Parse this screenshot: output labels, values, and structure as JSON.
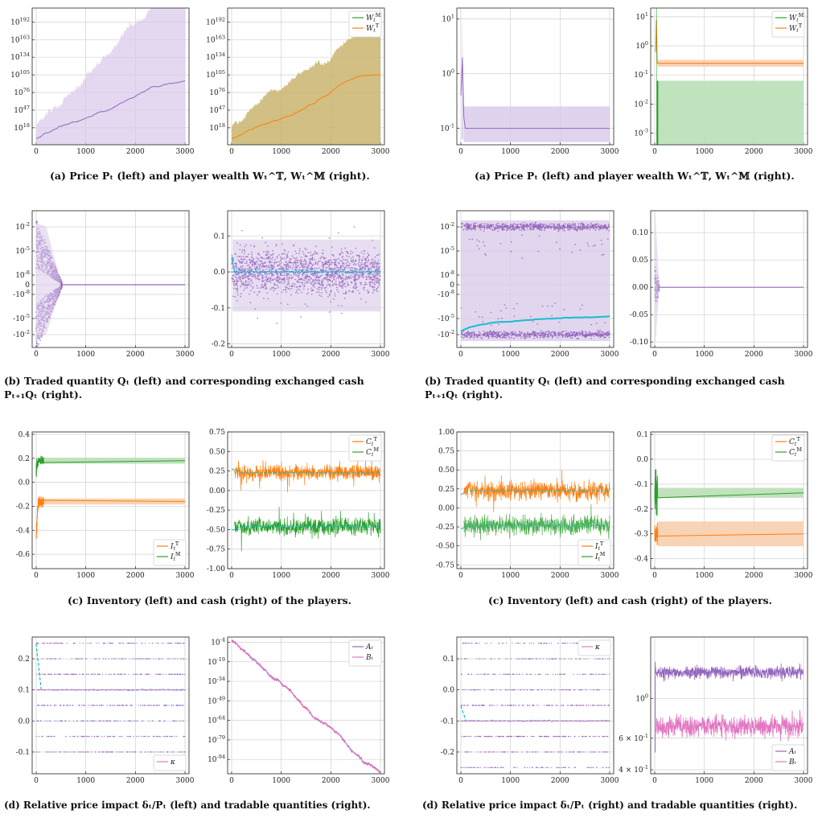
{
  "colors": {
    "purple": "#9467bd",
    "purple_band": "#d8c8ea",
    "orange": "#ff7f0e",
    "orange_band": "#f7cfae",
    "green": "#2ca02c",
    "green_band": "#b9dfb6",
    "olive_band": "#c9b46f",
    "cyan": "#17becf",
    "pink": "#e377c2"
  },
  "captions": [
    "(a) Price Pₜ (left) and player wealth Wₜ^𝕋, Wₜ^𝕄 (right).",
    "(a) Price Pₜ (left) and player wealth Wₜ^𝕋, Wₜ^𝕄 (right).",
    "(b) Traded quantity Qₜ (left) and corresponding exchanged cash Pₜ₊₁Qₜ (right).",
    "(b) Traded quantity Qₜ (left) and corresponding exchanged cash Pₜ₊₁Qₜ (right).",
    "(c) Inventory (left) and cash (right) of the players.",
    "(c) Inventory (left) and cash (right) of the players.",
    "(d) Relative price impact δₜ/Pₜ (left) and tradable quantities (right).",
    "(d) Relative price impact δₜ/Pₜ (right) and tradable quantities (right)."
  ],
  "chart_data": [
    {
      "id": "a-left",
      "type": "line",
      "xlim": [
        0,
        3000
      ],
      "x_ticks": [
        "0",
        "1000",
        "2000",
        "3000"
      ],
      "y_scale": "log",
      "y_ticks": [
        "10^18",
        "10^47",
        "10^76",
        "10^105",
        "10^134",
        "10^163",
        "10^192"
      ],
      "series": [
        {
          "color": "purple",
          "start_exp": 0,
          "end_exp": 105,
          "band": "purple_band",
          "band_end_exp": 225
        }
      ]
    },
    {
      "id": "a-right",
      "type": "line",
      "xlim": [
        0,
        3000
      ],
      "x_ticks": [
        "0",
        "1000",
        "2000",
        "3000"
      ],
      "y_scale": "log",
      "y_ticks": [
        "10^18",
        "10^47",
        "10^76",
        "10^105",
        "10^134",
        "10^163",
        "10^192"
      ],
      "legend": [
        "Wₜ^𝕄",
        "Wₜ^𝕋"
      ],
      "series": [
        {
          "color": "orange",
          "start_exp": 0,
          "end_exp": 105,
          "band": "olive_band",
          "band_end_exp": 200
        }
      ]
    },
    {
      "id": "a2-left",
      "type": "line",
      "xlim": [
        0,
        3000
      ],
      "x_ticks": [
        "0",
        "1000",
        "2000",
        "3000"
      ],
      "y_scale": "log",
      "y_ticks": [
        "10^-1",
        "10^0",
        "10^1"
      ],
      "ylim_exp": [
        -1.3,
        1.2
      ],
      "series": [
        {
          "color": "purple",
          "spike_exp": 0.3,
          "level_exp": -1,
          "band": [
            -1.25,
            -0.6
          ]
        }
      ]
    },
    {
      "id": "a2-right",
      "type": "line",
      "xlim": [
        0,
        3000
      ],
      "x_ticks": [
        "0",
        "1000",
        "2000",
        "3000"
      ],
      "y_scale": "log",
      "y_ticks": [
        "10^-3",
        "10^-2",
        "10^-1",
        "10^0",
        "10^1"
      ],
      "ylim_exp": [
        -3.4,
        1.3
      ],
      "legend": [
        "Wₜ^𝕄",
        "Wₜ^𝕋"
      ],
      "series": [
        {
          "color": "orange",
          "level_exp": -0.6
        },
        {
          "color": "green",
          "band_top_exp": -1.2
        }
      ]
    },
    {
      "id": "b-left",
      "type": "scatter",
      "xlim": [
        0,
        3000
      ],
      "x_ticks": [
        "0",
        "1000",
        "2000",
        "3000"
      ],
      "y_scale": "symlog",
      "y_ticks": [
        "10^-2",
        "10^-5",
        "10^-8",
        "0",
        "-10^-8",
        "-10^-5",
        "-10^-2"
      ]
    },
    {
      "id": "b-right",
      "type": "scatter",
      "xlim": [
        0,
        3000
      ],
      "x_ticks": [
        "0",
        "1000",
        "2000",
        "3000"
      ],
      "ylim": [
        -0.21,
        0.17
      ],
      "y_ticks": [
        "0.1",
        "0.0",
        "-0.1",
        "-0.2"
      ]
    },
    {
      "id": "b2-left",
      "type": "scatter",
      "xlim": [
        0,
        3000
      ],
      "x_ticks": [
        "0",
        "1000",
        "2000",
        "3000"
      ],
      "y_scale": "symlog",
      "y_ticks": [
        "10^-2",
        "10^-5",
        "10^-8",
        "0",
        "-10^-8",
        "-10^-5",
        "-10^-2"
      ]
    },
    {
      "id": "b2-right",
      "type": "scatter",
      "xlim": [
        0,
        3000
      ],
      "x_ticks": [
        "0",
        "1000",
        "2000",
        "3000"
      ],
      "ylim": [
        -0.11,
        0.14
      ],
      "y_ticks": [
        "0.10",
        "0.05",
        "0.00",
        "-0.05",
        "-0.10"
      ]
    },
    {
      "id": "c-left",
      "type": "line",
      "xlim": [
        0,
        3000
      ],
      "x_ticks": [
        "0",
        "1000",
        "2000",
        "3000"
      ],
      "ylim": [
        -0.72,
        0.42
      ],
      "y_ticks": [
        "0.4",
        "0.2",
        "0.0",
        "-0.2",
        "-0.4",
        "-0.6"
      ],
      "legend": [
        "Iₜ^𝕋",
        "Iₜ^𝕄"
      ],
      "series": [
        {
          "color": "green",
          "level": 0.18
        },
        {
          "color": "orange",
          "level": -0.16
        }
      ]
    },
    {
      "id": "c-right",
      "type": "line",
      "xlim": [
        0,
        3000
      ],
      "x_ticks": [
        "0",
        "1000",
        "2000",
        "3000"
      ],
      "ylim": [
        -1.0,
        0.75
      ],
      "y_ticks": [
        "0.75",
        "0.50",
        "0.25",
        "0.00",
        "-0.25",
        "-0.50",
        "-0.75",
        "-1.00"
      ],
      "legend": [
        "Cₜ^𝕋",
        "Cₜ^𝕄"
      ],
      "series": [
        {
          "color": "orange",
          "level": 0.23
        },
        {
          "color": "green",
          "level": -0.46
        }
      ]
    },
    {
      "id": "c2-left",
      "type": "line",
      "xlim": [
        0,
        3000
      ],
      "x_ticks": [
        "0",
        "1000",
        "2000",
        "3000"
      ],
      "ylim": [
        -0.8,
        1.0
      ],
      "y_ticks": [
        "1.00",
        "0.75",
        "0.50",
        "0.25",
        "0.00",
        "-0.25",
        "-0.50",
        "-0.75"
      ],
      "legend": [
        "Iₜ^𝕋",
        "Iₜ^𝕄"
      ],
      "series": [
        {
          "color": "orange",
          "level": 0.23
        },
        {
          "color": "green",
          "level": -0.23
        }
      ]
    },
    {
      "id": "c2-right",
      "type": "line",
      "xlim": [
        0,
        3000
      ],
      "x_ticks": [
        "0",
        "1000",
        "2000",
        "3000"
      ],
      "ylim": [
        -0.44,
        0.11
      ],
      "y_ticks": [
        "0.1",
        "0.0",
        "-0.1",
        "-0.2",
        "-0.3",
        "-0.4"
      ],
      "legend": [
        "Cₜ^𝕋",
        "Cₜ^𝕄"
      ],
      "series": [
        {
          "color": "green",
          "level": -0.135
        },
        {
          "color": "orange",
          "level": -0.3
        }
      ]
    },
    {
      "id": "d-left",
      "type": "scatter",
      "xlim": [
        0,
        3000
      ],
      "x_ticks": [
        "0",
        "1000",
        "2000",
        "3000"
      ],
      "ylim": [
        -0.17,
        0.27
      ],
      "y_ticks": [
        "0.2",
        "0.1",
        "0.0",
        "-0.1"
      ],
      "legend": [
        "κ"
      ],
      "levels": [
        0.25,
        0.2,
        0.15,
        0.1,
        0.05,
        0.0,
        -0.05,
        -0.1
      ],
      "mean": 0.1
    },
    {
      "id": "d-right",
      "type": "line",
      "xlim": [
        0,
        3000
      ],
      "x_ticks": [
        "0",
        "1000",
        "2000",
        "3000"
      ],
      "y_scale": "log",
      "y_ticks": [
        "10^-4",
        "10^-19",
        "10^-34",
        "10^-49",
        "10^-64",
        "10^-79",
        "10^-94"
      ],
      "legend": [
        "Aₜ",
        "Bₜ"
      ]
    },
    {
      "id": "d2-left",
      "type": "scatter",
      "xlim": [
        0,
        3000
      ],
      "x_ticks": [
        "0",
        "1000",
        "2000",
        "3000"
      ],
      "ylim": [
        -0.27,
        0.17
      ],
      "y_ticks": [
        "0.1",
        "0.0",
        "-0.1",
        "-0.2"
      ],
      "legend": [
        "κ"
      ],
      "levels": [
        0.15,
        0.1,
        0.05,
        0.0,
        -0.05,
        -0.1,
        -0.15,
        -0.2,
        -0.25
      ],
      "mean": -0.1
    },
    {
      "id": "d2-right",
      "type": "line",
      "xlim": [
        0,
        3000
      ],
      "x_ticks": [
        "0",
        "1000",
        "2000",
        "3000"
      ],
      "y_scale": "log",
      "y_ticks": [
        "10^0",
        "6 × 10^-1",
        "4 × 10^-1"
      ],
      "legend": [
        "Aₜ",
        "Bₜ"
      ]
    }
  ]
}
